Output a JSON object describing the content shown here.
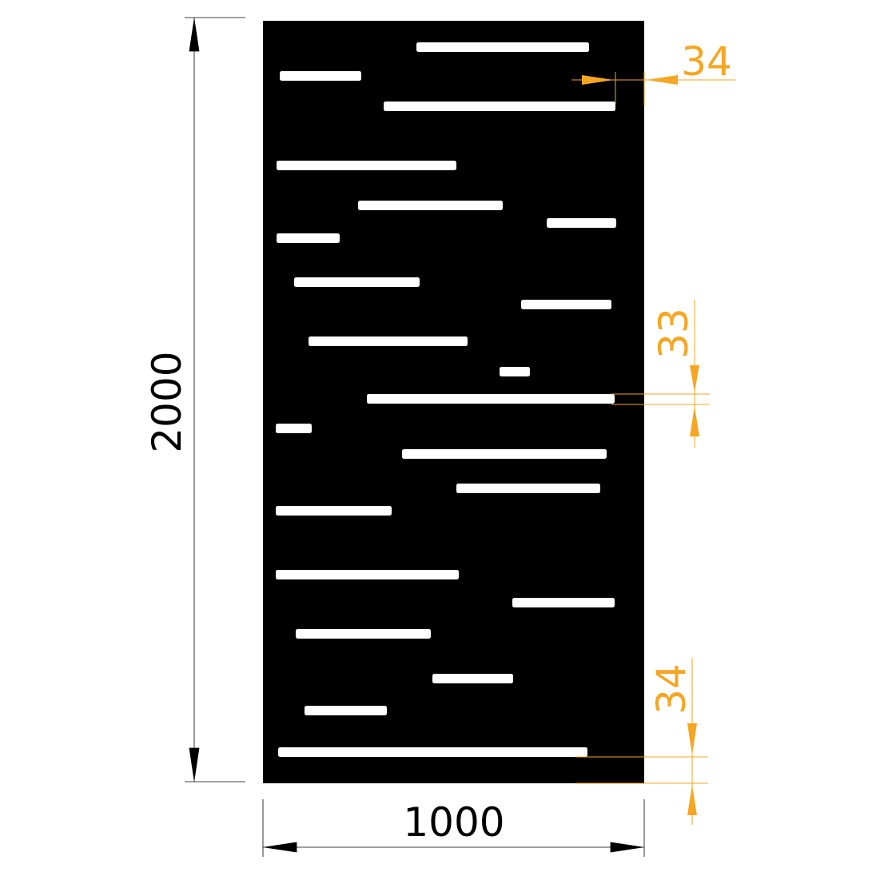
{
  "colors": {
    "panel": "#000000",
    "slot": "#ffffff",
    "dimension": "#000000",
    "annotation": "#f5a623"
  },
  "dimensions": {
    "height_label": "2000",
    "width_label": "1000",
    "edge_margin_right_label": "34",
    "slot_height_label": "33",
    "edge_margin_bottom_label": "34"
  }
}
